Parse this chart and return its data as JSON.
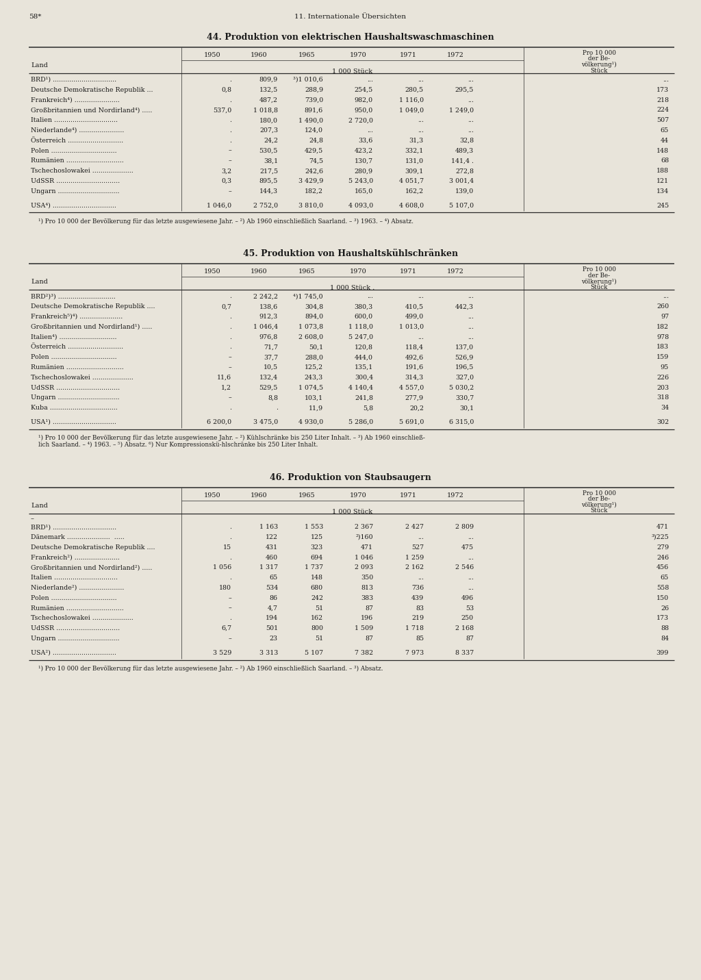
{
  "page_header_left": "58*",
  "page_header_center": "11. Internationale Übersichten",
  "bg_color": "#e8e4da",
  "tables": [
    {
      "title": "44. Produktion von elektrischen Haushaltswaschmaschinen",
      "unit_label": "1 000 Stück",
      "has_extra_dot_unit": false,
      "has_dash_row": false,
      "rows": [
        [
          "BRD¹) ...............................",
          ".",
          "809,9",
          "³)1 010,6",
          "...",
          "...",
          "...",
          "..."
        ],
        [
          "Deutsche Demokratische Republik ...",
          "0,8",
          "132,5",
          "288,9",
          "254,5",
          "280,5",
          "295,5",
          "173"
        ],
        [
          "Frankreich⁴) ......................",
          ".",
          "487,2",
          "739,0",
          "982,0",
          "1 116,0",
          "...",
          "218"
        ],
        [
          "Großbritannien und Nordirland⁴) .....",
          "537,0",
          "1 018,8",
          "891,6",
          "950,0",
          "1 049,0",
          "1 249,0",
          "224"
        ],
        [
          "Italien ...............................",
          ".",
          "180,0",
          "1 490,0",
          "2 720,0",
          "...",
          "...",
          "507"
        ],
        [
          "Niederlande⁴) ......................",
          ".",
          "207,3",
          "124,0",
          "...",
          "...",
          "...",
          "65"
        ],
        [
          "Österreich ...........................",
          ".",
          "24,2",
          "24,8",
          "33,6",
          "31,3",
          "32,8",
          "44"
        ],
        [
          "Polen ................................",
          "–",
          "530,5",
          "429,5",
          "423,2",
          "332,1",
          "489,3",
          "148"
        ],
        [
          "Rumänien ............................",
          "–",
          "38,1",
          "74,5",
          "130,7",
          "131,0",
          "141,4 .",
          "68"
        ],
        [
          "Tschechoslowakei ....................",
          "3,2",
          "217,5",
          "242,6",
          "280,9",
          "309,1",
          "272,8",
          "188"
        ],
        [
          "UdSSR ...............................",
          "0,3",
          "895,5",
          "3 429,9",
          "5 243,0",
          "4 051,7",
          "3 001,4",
          "121"
        ],
        [
          "Ungarn ..............................",
          "–",
          "144,3",
          "182,2",
          "165,0",
          "162,2",
          "139,0",
          "134"
        ],
        [
          "USA⁴) ...............................",
          "1 046,0",
          "2 752,0",
          "3 810,0",
          "4 093,0",
          "4 608,0",
          "5 107,0",
          "245"
        ]
      ],
      "usa_sep_before_last": true,
      "footnote": "¹) Pro 10 000 der Bevölkerung für das letzte ausgewiesene Jahr. – ²) Ab 1960 einschließlich Saarland. – ³) 1963. – ⁴) Absatz."
    },
    {
      "title": "45. Produktion von Haushaltskühlschränken",
      "unit_label": "1 000 Stück .",
      "has_extra_dot_unit": true,
      "has_dash_row": false,
      "rows": [
        [
          "BRD²)³) ............................",
          ".",
          "2 242,2",
          "⁴)1 745,0",
          "...",
          "...",
          "...",
          "..."
        ],
        [
          "Deutsche Demokratische Republik ....",
          "0,7",
          "138,6",
          "304,8",
          "380,3",
          "410,5",
          "442,3",
          "260"
        ],
        [
          "Frankreich⁵)⁴) .....................",
          ".",
          "912,3",
          "894,0",
          "600,0",
          "499,0",
          "...",
          "97"
        ],
        [
          "Großbritannien und Nordirland¹) .....",
          ".",
          "1 046,4",
          "1 073,8",
          "1 118,0",
          "1 013,0",
          "...",
          "182"
        ],
        [
          "Italien⁴) ............................",
          ".",
          "976,8",
          "2 608,0",
          "5 247,0",
          "...",
          "...",
          "978"
        ],
        [
          "Österreich ...........................",
          ".",
          "71,7",
          "50,1",
          "120,8",
          "118,4",
          "137,0",
          "183"
        ],
        [
          "Polen ................................",
          "–",
          "37,7",
          "288,0",
          "444,0",
          "492,6",
          "526,9",
          "159"
        ],
        [
          "Rumänien ............................",
          "–",
          "10,5",
          "125,2",
          "135,1",
          "191,6",
          "196,5",
          "95"
        ],
        [
          "Tschechoslowakei ....................",
          "11,6",
          "132,4",
          "243,3",
          "300,4",
          "314,3",
          "327,0",
          "226"
        ],
        [
          "UdSSR ...............................",
          "1,2",
          "529,5",
          "1 074,5",
          "4 140,4",
          "4 557,0",
          "5 030,2",
          "203"
        ],
        [
          "Ungarn ..............................",
          "–",
          "8,8",
          "103,1",
          "241,8",
          "277,9",
          "330,7",
          "318"
        ],
        [
          "Kuba .................................",
          ".",
          ".",
          "11,9",
          "5,8",
          "20,2",
          "30,1",
          "34"
        ],
        [
          "USA¹) ...............................",
          "6 200,0",
          "3 475,0",
          "4 930,0",
          "5 286,0",
          "5 691,0",
          "6 315,0",
          "302"
        ]
      ],
      "usa_sep_before_last": true,
      "footnote": "¹) Pro 10 000 der Bevölkerung für das letzte ausgewiesene Jahr. – ²) Kühlschränke bis 250 Liter Inhalt. – ³) Ab 1960 einschließ-\nlich Saarland. – ⁴) 1963. – ⁵) Absatz. ⁶) Nur Kompressionskü­hlschränke bis 250 Liter Inhalt."
    },
    {
      "title": "46. Produktion von Staubsaugern",
      "unit_label": "1 000 Stück",
      "has_extra_dot_unit": false,
      "has_dash_row": true,
      "rows": [
        [
          "BRD¹) ...............................",
          ".",
          "1 163",
          "1 553",
          "2 367",
          "2 427",
          "2 809",
          "471"
        ],
        [
          "Dänemark .....................  .....",
          ".",
          "122",
          "125",
          "²)160",
          "...",
          "...",
          "³)225"
        ],
        [
          "Deutsche Demokratische Republik ....",
          "15",
          "431",
          "323",
          "471",
          "527",
          "475",
          "279"
        ],
        [
          "Frankreich²) ......................",
          ".",
          "460",
          "694",
          "1 046",
          "1 259",
          "...",
          "246"
        ],
        [
          "Großbritannien und Nordirland²) .....",
          "1 056",
          "1 317",
          "1 737",
          "2 093",
          "2 162",
          "2 546",
          "456"
        ],
        [
          "Italien ...............................",
          ".",
          "65",
          "148",
          "350",
          "...",
          "...",
          "65"
        ],
        [
          "Niederlande²) ......................",
          "180",
          "534",
          "680",
          "813",
          "736",
          "...",
          "558"
        ],
        [
          "Polen ................................",
          "–",
          "86",
          "242",
          "383",
          "439",
          "496",
          "150"
        ],
        [
          "Rumänien ............................",
          "–",
          "4,7",
          "51",
          "87",
          "83",
          "53",
          "26"
        ],
        [
          "Tschechoslowakei ....................",
          ".",
          "194",
          "162",
          "196",
          "219",
          "250",
          "173"
        ],
        [
          "UdSSR ...............................",
          "6,7",
          "501",
          "800",
          "1 509",
          "1 718",
          "2 168",
          "88"
        ],
        [
          "Ungarn ..............................",
          "–",
          "23",
          "51",
          "87",
          "85",
          "87",
          "84"
        ],
        [
          "USA²) ...............................",
          "3 529",
          "3 313",
          "5 107",
          "7 382",
          "7 973",
          "8 337",
          "399"
        ]
      ],
      "usa_sep_before_last": true,
      "footnote": "¹) Pro 10 000 der Bevölkerung für das letzte ausgewiesene Jahr. – ²) Ab 1960 einschließlich Saarland. – ³) Absatz."
    }
  ]
}
